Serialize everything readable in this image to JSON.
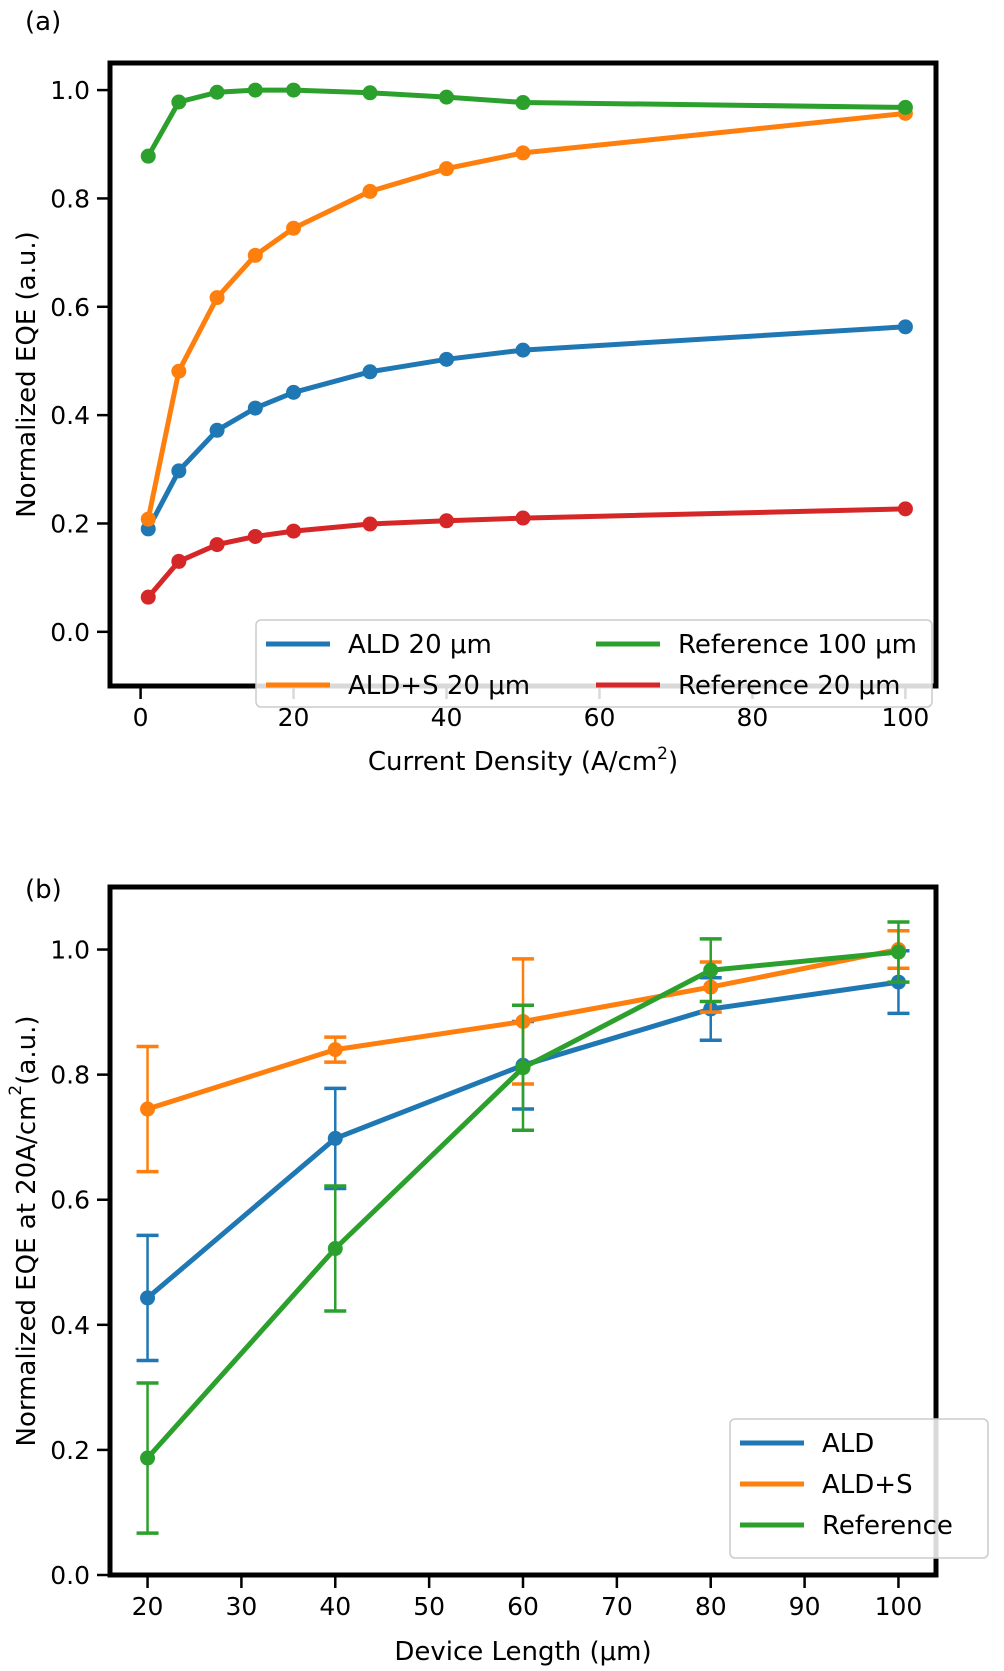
{
  "chart_data": [
    {
      "type": "line",
      "panel_label": "(a)",
      "xlabel": "Current Density (A/cm",
      "xlabel_sup": "2",
      "xlabel_tail": ")",
      "ylabel": "Normalized EQE (a.u.)",
      "xlim": [
        -4,
        104
      ],
      "ylim": [
        -0.1,
        1.05
      ],
      "xticks": [
        0,
        20,
        40,
        60,
        80,
        100
      ],
      "yticks": [
        0.0,
        0.2,
        0.4,
        0.6,
        0.8,
        1.0
      ],
      "ytick_labels": [
        "0.0",
        "0.2",
        "0.4",
        "0.6",
        "0.8",
        "1.0"
      ],
      "legend_position": "lower-right",
      "legend_columns": 2,
      "grid": false,
      "series": [
        {
          "name": "ALD 20 μm",
          "color": "#1f77b4",
          "x": [
            1,
            5,
            10,
            15,
            20,
            30,
            40,
            50,
            100
          ],
          "y": [
            0.19,
            0.297,
            0.372,
            0.413,
            0.442,
            0.48,
            0.503,
            0.52,
            0.563
          ]
        },
        {
          "name": "ALD+S 20 μm",
          "color": "#ff7f0e",
          "x": [
            1,
            5,
            10,
            15,
            20,
            30,
            40,
            50,
            100
          ],
          "y": [
            0.208,
            0.481,
            0.617,
            0.695,
            0.745,
            0.813,
            0.855,
            0.884,
            0.957
          ]
        },
        {
          "name": "Reference 100 μm",
          "color": "#2ca02c",
          "x": [
            1,
            5,
            10,
            15,
            20,
            30,
            40,
            50,
            100
          ],
          "y": [
            0.878,
            0.978,
            0.996,
            1.0,
            1.0,
            0.995,
            0.987,
            0.977,
            0.968
          ]
        },
        {
          "name": "Reference 20 μm",
          "color": "#d62728",
          "x": [
            1,
            5,
            10,
            15,
            20,
            30,
            40,
            50,
            100
          ],
          "y": [
            0.064,
            0.13,
            0.161,
            0.176,
            0.186,
            0.199,
            0.205,
            0.21,
            0.227
          ]
        }
      ],
      "legend_order": [
        0,
        2,
        1,
        3
      ]
    },
    {
      "type": "line",
      "panel_label": "(b)",
      "xlabel": "Device Length (μm)",
      "ylabel": "Normalized EQE at 20A/cm",
      "ylabel_sup": "2",
      "ylabel_tail": "(a.u.)",
      "xlim": [
        16,
        104
      ],
      "ylim": [
        0.0,
        1.1
      ],
      "xticks": [
        20,
        30,
        40,
        50,
        60,
        70,
        80,
        90,
        100
      ],
      "yticks": [
        0.0,
        0.2,
        0.4,
        0.6,
        0.8,
        1.0
      ],
      "ytick_labels": [
        "0.0",
        "0.2",
        "0.4",
        "0.6",
        "0.8",
        "1.0"
      ],
      "legend_position": "lower-right",
      "legend_columns": 1,
      "grid": false,
      "series": [
        {
          "name": "ALD",
          "color": "#1f77b4",
          "x": [
            20,
            40,
            60,
            80,
            100
          ],
          "y": [
            0.443,
            0.698,
            0.815,
            0.905,
            0.948
          ],
          "yerr": [
            0.1,
            0.08,
            0.07,
            0.05,
            0.05
          ]
        },
        {
          "name": "ALD+S",
          "color": "#ff7f0e",
          "x": [
            20,
            40,
            60,
            80,
            100
          ],
          "y": [
            0.745,
            0.84,
            0.885,
            0.94,
            1.0
          ],
          "yerr": [
            0.1,
            0.02,
            0.1,
            0.04,
            0.03
          ]
        },
        {
          "name": "Reference",
          "color": "#2ca02c",
          "x": [
            20,
            40,
            60,
            80,
            100
          ],
          "y": [
            0.187,
            0.522,
            0.811,
            0.967,
            0.996
          ],
          "yerr": [
            0.12,
            0.1,
            0.1,
            0.05,
            0.048
          ]
        }
      ],
      "legend_order": [
        0,
        1,
        2
      ]
    }
  ]
}
